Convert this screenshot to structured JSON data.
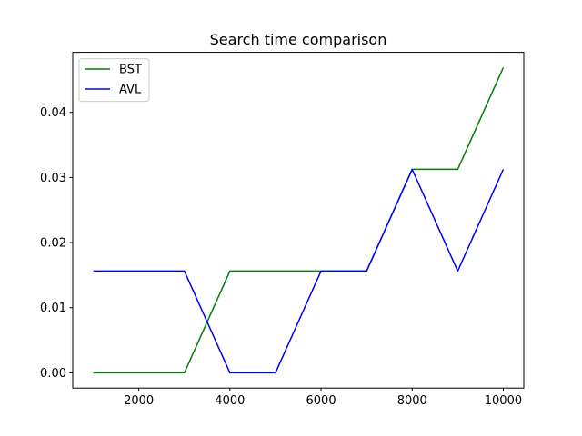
{
  "chart_data": {
    "type": "line",
    "title": "Search time comparison",
    "xlabel": "",
    "ylabel": "",
    "x": [
      1000,
      2000,
      3000,
      4000,
      5000,
      6000,
      7000,
      8000,
      9000,
      10000
    ],
    "xlim": [
      550,
      10450
    ],
    "ylim": [
      -0.00234,
      0.04922
    ],
    "xticks": [
      2000,
      4000,
      6000,
      8000,
      10000
    ],
    "xtick_labels": [
      "2000",
      "4000",
      "6000",
      "8000",
      "10000"
    ],
    "yticks": [
      0.0,
      0.01,
      0.02,
      0.03,
      0.04
    ],
    "ytick_labels": [
      "0.00",
      "0.01",
      "0.02",
      "0.03",
      "0.04"
    ],
    "grid": false,
    "legend_position": "upper-left",
    "series": [
      {
        "name": "BST",
        "color": "#008000",
        "values": [
          0.0,
          0.0,
          0.0,
          0.015625,
          0.015625,
          0.015625,
          0.015625,
          0.03125,
          0.03125,
          0.046875
        ]
      },
      {
        "name": "AVL",
        "color": "#0000ff",
        "values": [
          0.015625,
          0.015625,
          0.015625,
          0.0,
          0.0,
          0.015625,
          0.015625,
          0.03125,
          0.015625,
          0.03125
        ]
      }
    ]
  }
}
